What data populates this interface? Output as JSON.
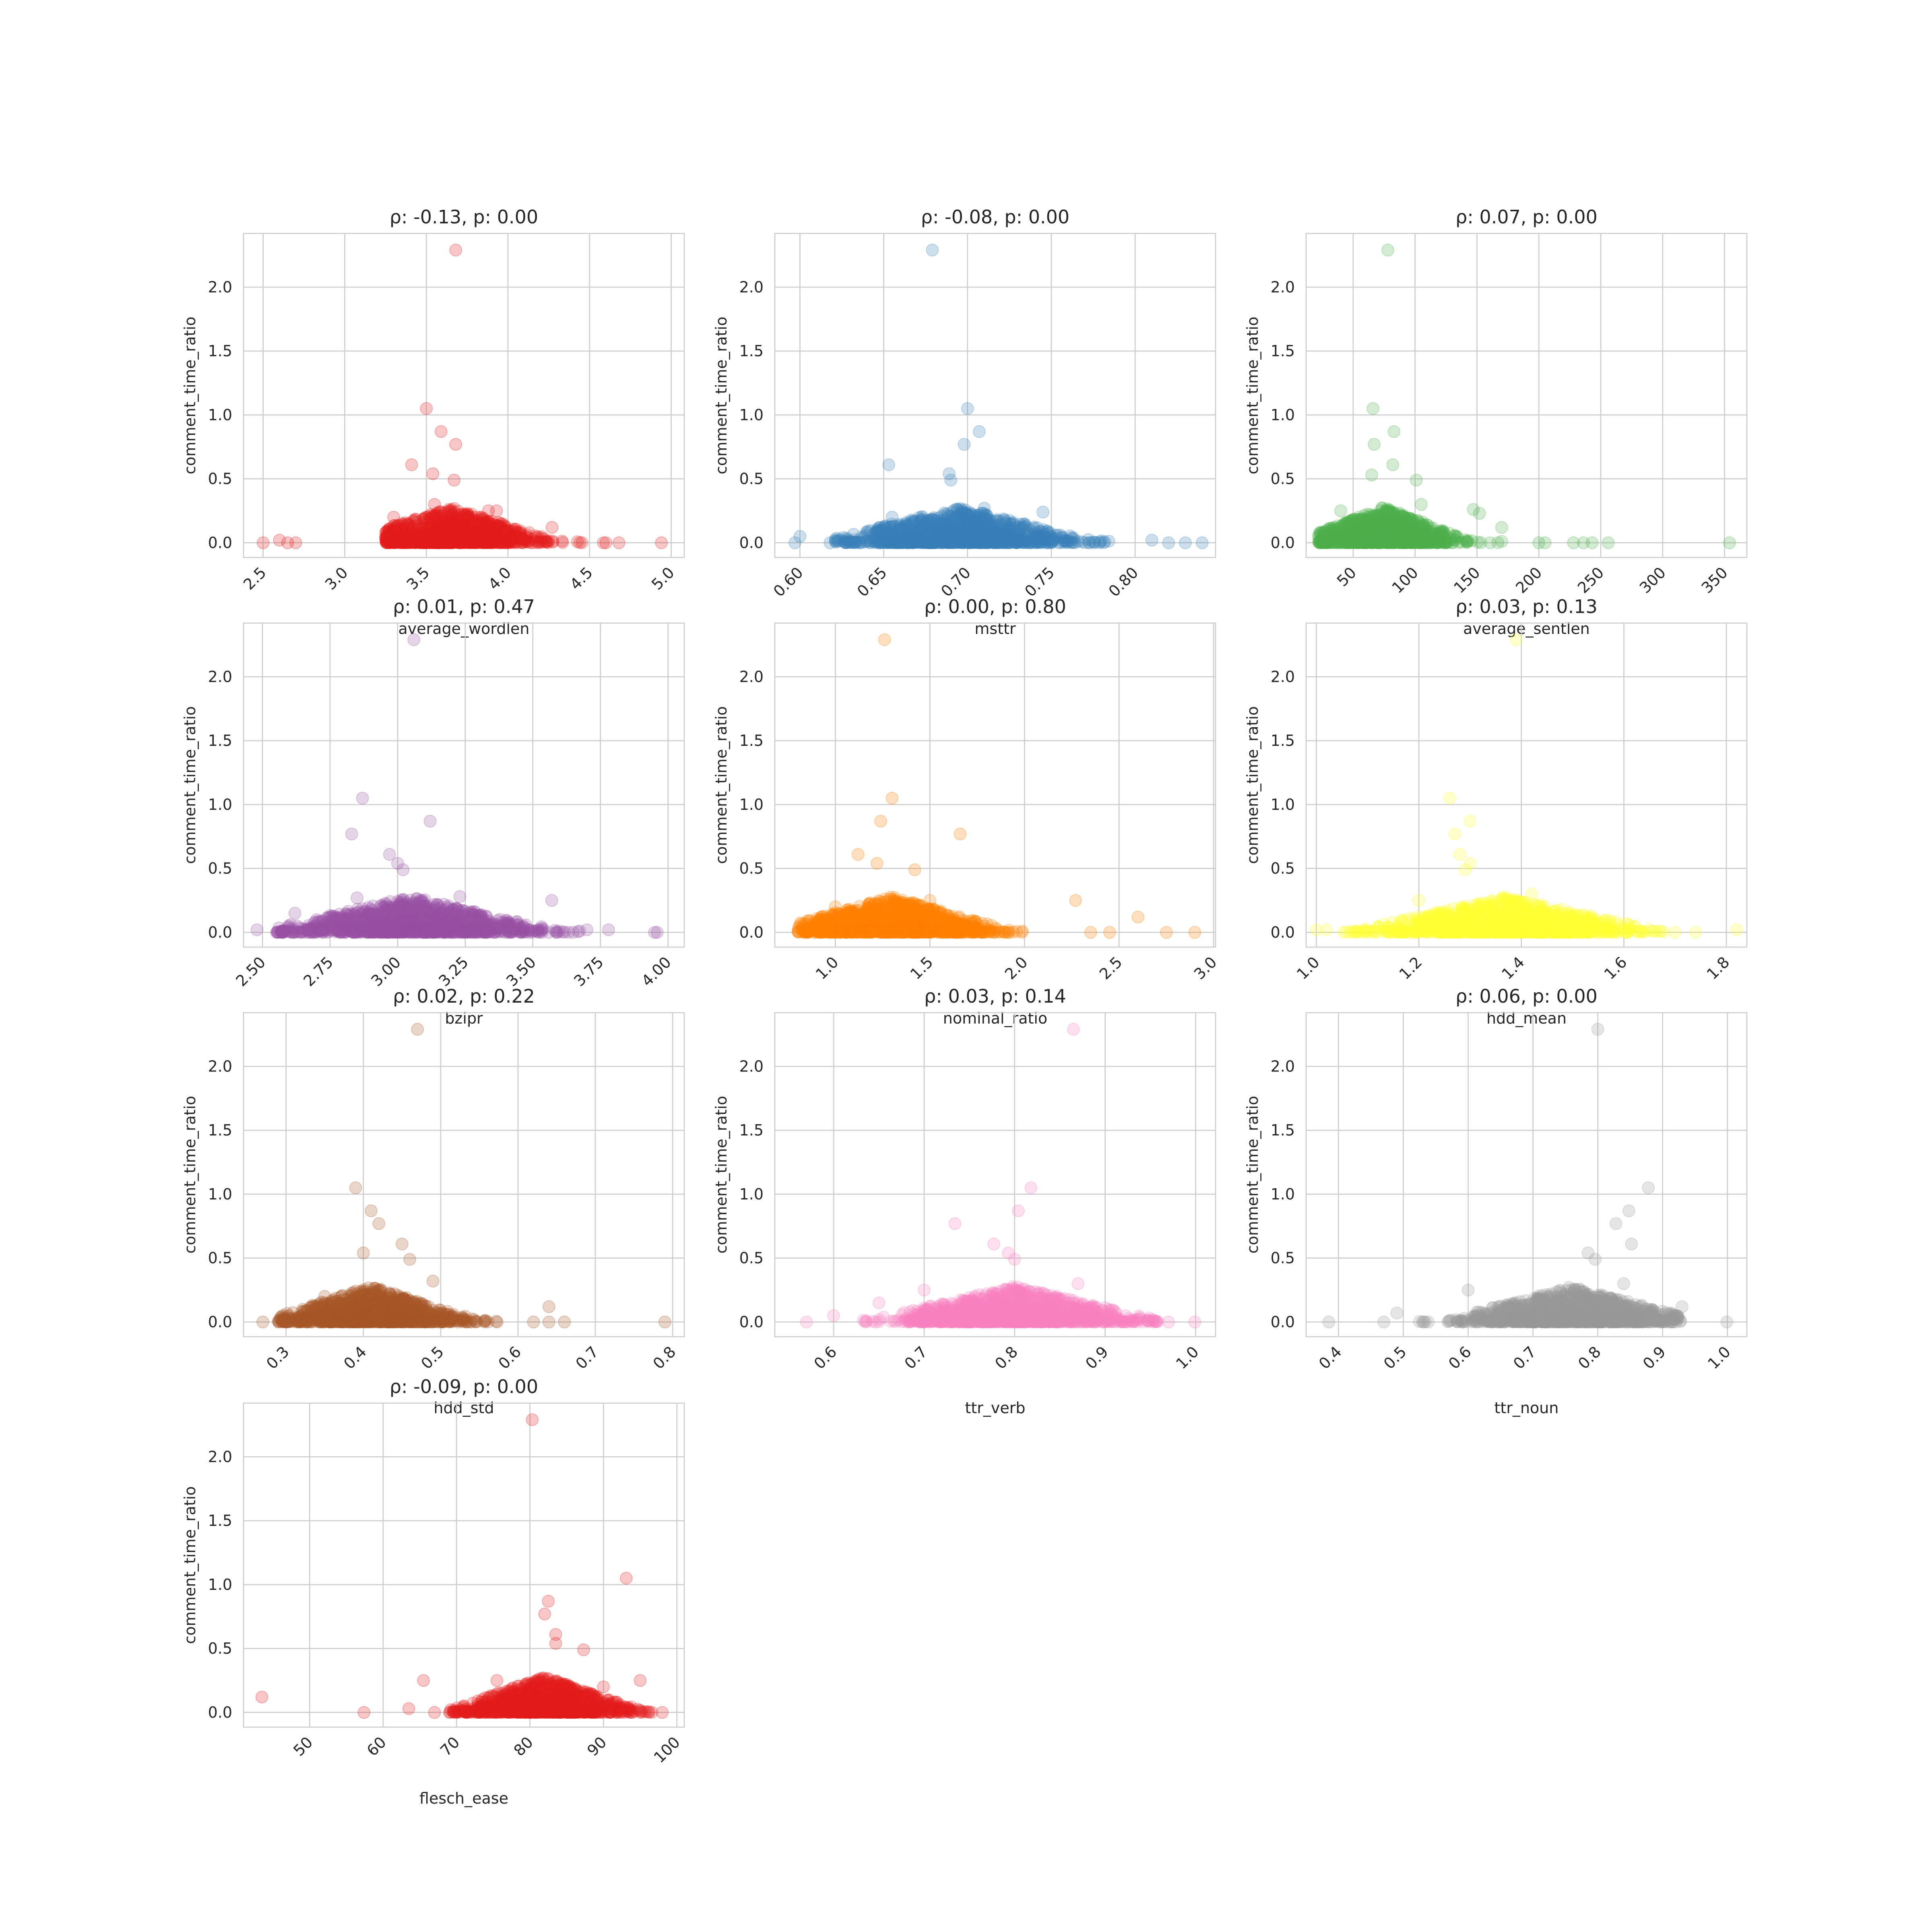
{
  "chart_data": [
    {
      "type": "scatter",
      "title": "ρ: -0.13, p: 0.00",
      "xlabel": "average_wordlen",
      "ylabel": "comment_time_ratio",
      "color": "#e41a1c",
      "xlim": [
        2.38,
        5.08
      ],
      "ylim": [
        -0.115,
        2.42
      ],
      "xticks": [
        2.5,
        3.0,
        3.5,
        4.0,
        4.5,
        5.0
      ],
      "xtick_labels": [
        "2.5",
        "3.0",
        "3.5",
        "4.0",
        "4.5",
        "5.0"
      ],
      "yticks": [
        0.0,
        0.5,
        1.0,
        1.5,
        2.0
      ],
      "ytick_labels": [
        "0.0",
        "0.5",
        "1.0",
        "1.5",
        "2.0"
      ],
      "points": [
        [
          3.68,
          2.29
        ],
        [
          3.5,
          1.05
        ],
        [
          3.59,
          0.87
        ],
        [
          3.68,
          0.77
        ],
        [
          3.41,
          0.61
        ],
        [
          3.54,
          0.54
        ],
        [
          3.67,
          0.49
        ],
        [
          3.88,
          0.25
        ],
        [
          3.93,
          0.25
        ],
        [
          4.27,
          0.12
        ],
        [
          2.5,
          0.0
        ],
        [
          2.6,
          0.02
        ],
        [
          2.65,
          0.0
        ],
        [
          2.7,
          0.0
        ],
        [
          4.94,
          0.0
        ],
        [
          4.68,
          0.0
        ],
        [
          4.6,
          0.0
        ],
        [
          3.3,
          0.2
        ],
        [
          3.55,
          0.3
        ],
        [
          3.75,
          0.18
        ]
      ],
      "cluster": {
        "x": [
          3.25,
          4.6
        ],
        "x_center": 3.65,
        "y_max": 0.28,
        "n": 1200
      }
    },
    {
      "type": "scatter",
      "title": "ρ: -0.08, p: 0.00",
      "xlabel": "msttr",
      "ylabel": "comment_time_ratio",
      "color": "#377eb8",
      "xlim": [
        0.585,
        0.848
      ],
      "ylim": [
        -0.115,
        2.42
      ],
      "xticks": [
        0.6,
        0.65,
        0.7,
        0.75,
        0.8
      ],
      "xtick_labels": [
        "0.60",
        "0.65",
        "0.70",
        "0.75",
        "0.80"
      ],
      "yticks": [
        0.0,
        0.5,
        1.0,
        1.5,
        2.0
      ],
      "ytick_labels": [
        "0.0",
        "0.5",
        "1.0",
        "1.5",
        "2.0"
      ],
      "points": [
        [
          0.679,
          2.29
        ],
        [
          0.7,
          1.05
        ],
        [
          0.707,
          0.87
        ],
        [
          0.698,
          0.77
        ],
        [
          0.653,
          0.61
        ],
        [
          0.689,
          0.54
        ],
        [
          0.69,
          0.49
        ],
        [
          0.745,
          0.24
        ],
        [
          0.6,
          0.05
        ],
        [
          0.597,
          0.0
        ],
        [
          0.618,
          0.0
        ],
        [
          0.82,
          0.0
        ],
        [
          0.83,
          0.0
        ],
        [
          0.84,
          0.0
        ],
        [
          0.81,
          0.02
        ],
        [
          0.655,
          0.2
        ],
        [
          0.71,
          0.27
        ]
      ],
      "cluster": {
        "x": [
          0.62,
          0.79
        ],
        "x_center": 0.695,
        "y_max": 0.28,
        "n": 1200
      }
    },
    {
      "type": "scatter",
      "title": "ρ: 0.07, p: 0.00",
      "xlabel": "average_sentlen",
      "ylabel": "comment_time_ratio",
      "color": "#4daf4a",
      "xlim": [
        12,
        368
      ],
      "ylim": [
        -0.115,
        2.42
      ],
      "xticks": [
        50,
        100,
        150,
        200,
        250,
        300,
        350
      ],
      "xtick_labels": [
        "50",
        "100",
        "150",
        "200",
        "250",
        "300",
        "350"
      ],
      "yticks": [
        0.0,
        0.5,
        1.0,
        1.5,
        2.0
      ],
      "ytick_labels": [
        "0.0",
        "0.5",
        "1.0",
        "1.5",
        "2.0"
      ],
      "points": [
        [
          78,
          2.29
        ],
        [
          66,
          1.05
        ],
        [
          67,
          0.77
        ],
        [
          83,
          0.87
        ],
        [
          82,
          0.61
        ],
        [
          65,
          0.53
        ],
        [
          101,
          0.49
        ],
        [
          105,
          0.3
        ],
        [
          147,
          0.26
        ],
        [
          152,
          0.23
        ],
        [
          170,
          0.12
        ],
        [
          200,
          0.0
        ],
        [
          205,
          0.0
        ],
        [
          228,
          0.0
        ],
        [
          236,
          0.0
        ],
        [
          243,
          0.0
        ],
        [
          256,
          0.0
        ],
        [
          354,
          0.0
        ],
        [
          25,
          0.0
        ],
        [
          40,
          0.25
        ]
      ],
      "cluster": {
        "x": [
          22,
          170
        ],
        "x_center": 75,
        "y_max": 0.28,
        "n": 1200
      }
    },
    {
      "type": "scatter",
      "title": "ρ: 0.01, p: 0.47",
      "xlabel": "bzipr",
      "ylabel": "comment_time_ratio",
      "color": "#984ea3",
      "xlim": [
        2.43,
        4.06
      ],
      "ylim": [
        -0.115,
        2.42
      ],
      "xticks": [
        2.5,
        2.75,
        3.0,
        3.25,
        3.5,
        3.75,
        4.0
      ],
      "xtick_labels": [
        "2.50",
        "2.75",
        "3.00",
        "3.25",
        "3.50",
        "3.75",
        "4.00"
      ],
      "yticks": [
        0.0,
        0.5,
        1.0,
        1.5,
        2.0
      ],
      "ytick_labels": [
        "0.0",
        "0.5",
        "1.0",
        "1.5",
        "2.0"
      ],
      "points": [
        [
          3.06,
          2.29
        ],
        [
          2.87,
          1.05
        ],
        [
          2.83,
          0.77
        ],
        [
          3.12,
          0.87
        ],
        [
          2.97,
          0.61
        ],
        [
          3.0,
          0.54
        ],
        [
          3.02,
          0.49
        ],
        [
          2.48,
          0.02
        ],
        [
          2.62,
          0.15
        ],
        [
          3.7,
          0.02
        ],
        [
          3.78,
          0.02
        ],
        [
          3.95,
          0.0
        ],
        [
          3.96,
          0.0
        ],
        [
          3.57,
          0.25
        ],
        [
          3.23,
          0.28
        ],
        [
          2.85,
          0.27
        ]
      ],
      "cluster": {
        "x": [
          2.55,
          3.7
        ],
        "x_center": 3.05,
        "y_max": 0.28,
        "n": 1200
      }
    },
    {
      "type": "scatter",
      "title": "ρ: 0.00, p: 0.80",
      "xlabel": "nominal_ratio",
      "ylabel": "comment_time_ratio",
      "color": "#ff7f00",
      "xlim": [
        0.68,
        3.01
      ],
      "ylim": [
        -0.115,
        2.42
      ],
      "xticks": [
        1.0,
        1.5,
        2.0,
        2.5,
        3.0
      ],
      "xtick_labels": [
        "1.0",
        "1.5",
        "2.0",
        "2.5",
        "3.0"
      ],
      "yticks": [
        0.0,
        0.5,
        1.0,
        1.5,
        2.0
      ],
      "ytick_labels": [
        "0.0",
        "0.5",
        "1.0",
        "1.5",
        "2.0"
      ],
      "points": [
        [
          1.26,
          2.29
        ],
        [
          1.3,
          1.05
        ],
        [
          1.24,
          0.87
        ],
        [
          1.66,
          0.77
        ],
        [
          1.12,
          0.61
        ],
        [
          1.22,
          0.54
        ],
        [
          1.42,
          0.49
        ],
        [
          2.27,
          0.25
        ],
        [
          2.6,
          0.12
        ],
        [
          2.75,
          0.0
        ],
        [
          2.9,
          0.0
        ],
        [
          2.45,
          0.0
        ],
        [
          2.35,
          0.0
        ],
        [
          1.5,
          0.25
        ],
        [
          1.0,
          0.2
        ]
      ],
      "cluster": {
        "x": [
          0.8,
          2.15
        ],
        "x_center": 1.3,
        "y_max": 0.28,
        "n": 1200
      }
    },
    {
      "type": "scatter",
      "title": "ρ: 0.03, p: 0.13",
      "xlabel": "hdd_mean",
      "ylabel": "comment_time_ratio",
      "color": "#ffff33",
      "xlim": [
        0.98,
        1.84
      ],
      "ylim": [
        -0.115,
        2.42
      ],
      "xticks": [
        1.0,
        1.2,
        1.4,
        1.6,
        1.8
      ],
      "xtick_labels": [
        "1.0",
        "1.2",
        "1.4",
        "1.6",
        "1.8"
      ],
      "yticks": [
        0.0,
        0.5,
        1.0,
        1.5,
        2.0
      ],
      "ytick_labels": [
        "0.0",
        "0.5",
        "1.0",
        "1.5",
        "2.0"
      ],
      "points": [
        [
          1.39,
          2.29
        ],
        [
          1.26,
          1.05
        ],
        [
          1.3,
          0.87
        ],
        [
          1.27,
          0.77
        ],
        [
          1.28,
          0.61
        ],
        [
          1.3,
          0.54
        ],
        [
          1.29,
          0.49
        ],
        [
          1.0,
          0.02
        ],
        [
          1.02,
          0.02
        ],
        [
          1.7,
          0.0
        ],
        [
          1.74,
          0.0
        ],
        [
          1.82,
          0.02
        ],
        [
          1.42,
          0.3
        ],
        [
          1.2,
          0.25
        ]
      ],
      "cluster": {
        "x": [
          1.05,
          1.68
        ],
        "x_center": 1.37,
        "y_max": 0.28,
        "n": 1200
      }
    },
    {
      "type": "scatter",
      "title": "ρ: 0.02, p: 0.22",
      "xlabel": "hdd_std",
      "ylabel": "comment_time_ratio",
      "color": "#a65628",
      "xlim": [
        0.245,
        0.815
      ],
      "ylim": [
        -0.115,
        2.42
      ],
      "xticks": [
        0.3,
        0.4,
        0.5,
        0.6,
        0.7,
        0.8
      ],
      "xtick_labels": [
        "0.3",
        "0.4",
        "0.5",
        "0.6",
        "0.7",
        "0.8"
      ],
      "yticks": [
        0.0,
        0.5,
        1.0,
        1.5,
        2.0
      ],
      "ytick_labels": [
        "0.0",
        "0.5",
        "1.0",
        "1.5",
        "2.0"
      ],
      "points": [
        [
          0.47,
          2.29
        ],
        [
          0.39,
          1.05
        ],
        [
          0.41,
          0.87
        ],
        [
          0.42,
          0.77
        ],
        [
          0.45,
          0.61
        ],
        [
          0.4,
          0.54
        ],
        [
          0.46,
          0.49
        ],
        [
          0.49,
          0.32
        ],
        [
          0.27,
          0.0
        ],
        [
          0.79,
          0.0
        ],
        [
          0.66,
          0.0
        ],
        [
          0.64,
          0.12
        ],
        [
          0.64,
          0.0
        ],
        [
          0.62,
          0.0
        ],
        [
          0.35,
          0.2
        ]
      ],
      "cluster": {
        "x": [
          0.29,
          0.58
        ],
        "x_center": 0.41,
        "y_max": 0.28,
        "n": 1200
      }
    },
    {
      "type": "scatter",
      "title": "ρ: 0.03, p: 0.14",
      "xlabel": "ttr_verb",
      "ylabel": "comment_time_ratio",
      "color": "#f781bf",
      "xlim": [
        0.535,
        1.022
      ],
      "ylim": [
        -0.115,
        2.42
      ],
      "xticks": [
        0.6,
        0.7,
        0.8,
        0.9,
        1.0
      ],
      "xtick_labels": [
        "0.6",
        "0.7",
        "0.8",
        "0.9",
        "1.0"
      ],
      "yticks": [
        0.0,
        0.5,
        1.0,
        1.5,
        2.0
      ],
      "ytick_labels": [
        "0.0",
        "0.5",
        "1.0",
        "1.5",
        "2.0"
      ],
      "points": [
        [
          0.865,
          2.29
        ],
        [
          0.818,
          1.05
        ],
        [
          0.804,
          0.87
        ],
        [
          0.734,
          0.77
        ],
        [
          0.777,
          0.61
        ],
        [
          0.793,
          0.54
        ],
        [
          0.8,
          0.49
        ],
        [
          0.57,
          0.0
        ],
        [
          0.6,
          0.05
        ],
        [
          0.999,
          0.0
        ],
        [
          0.97,
          0.0
        ],
        [
          0.87,
          0.3
        ],
        [
          0.7,
          0.25
        ],
        [
          0.65,
          0.15
        ]
      ],
      "cluster": {
        "x": [
          0.62,
          0.96
        ],
        "x_center": 0.8,
        "y_max": 0.28,
        "n": 1200
      }
    },
    {
      "type": "scatter",
      "title": "ρ: 0.06, p: 0.00",
      "xlabel": "ttr_noun",
      "ylabel": "comment_time_ratio",
      "color": "#999999",
      "xlim": [
        0.35,
        1.03
      ],
      "ylim": [
        -0.115,
        2.42
      ],
      "xticks": [
        0.4,
        0.5,
        0.6,
        0.7,
        0.8,
        0.9,
        1.0
      ],
      "xtick_labels": [
        "0.4",
        "0.5",
        "0.6",
        "0.7",
        "0.8",
        "0.9",
        "1.0"
      ],
      "yticks": [
        0.0,
        0.5,
        1.0,
        1.5,
        2.0
      ],
      "ytick_labels": [
        "0.0",
        "0.5",
        "1.0",
        "1.5",
        "2.0"
      ],
      "points": [
        [
          0.8,
          2.29
        ],
        [
          0.878,
          1.05
        ],
        [
          0.848,
          0.87
        ],
        [
          0.828,
          0.77
        ],
        [
          0.852,
          0.61
        ],
        [
          0.785,
          0.54
        ],
        [
          0.796,
          0.49
        ],
        [
          0.385,
          0.0
        ],
        [
          0.47,
          0.0
        ],
        [
          0.49,
          0.07
        ],
        [
          0.999,
          0.0
        ],
        [
          0.93,
          0.12
        ],
        [
          0.84,
          0.3
        ],
        [
          0.6,
          0.25
        ]
      ],
      "cluster": {
        "x": [
          0.52,
          0.93
        ],
        "x_center": 0.76,
        "y_max": 0.28,
        "n": 1200
      }
    },
    {
      "type": "scatter",
      "title": "ρ: -0.09, p: 0.00",
      "xlabel": "flesch_ease",
      "ylabel": "comment_time_ratio",
      "color": "#e41a1c",
      "xlim": [
        41,
        101
      ],
      "ylim": [
        -0.115,
        2.42
      ],
      "xticks": [
        50,
        60,
        70,
        80,
        90,
        100
      ],
      "xtick_labels": [
        "50",
        "60",
        "70",
        "80",
        "90",
        "100"
      ],
      "yticks": [
        0.0,
        0.5,
        1.0,
        1.5,
        2.0
      ],
      "ytick_labels": [
        "0.0",
        "0.5",
        "1.0",
        "1.5",
        "2.0"
      ],
      "points": [
        [
          80.3,
          2.29
        ],
        [
          93.1,
          1.05
        ],
        [
          82.5,
          0.87
        ],
        [
          82,
          0.77
        ],
        [
          83.5,
          0.61
        ],
        [
          83.5,
          0.54
        ],
        [
          87.3,
          0.49
        ],
        [
          43.5,
          0.12
        ],
        [
          57.4,
          0.0
        ],
        [
          63.5,
          0.03
        ],
        [
          65.5,
          0.25
        ],
        [
          67,
          0.0
        ],
        [
          75.5,
          0.25
        ],
        [
          95,
          0.25
        ],
        [
          90,
          0.2
        ],
        [
          98,
          0.0
        ]
      ],
      "cluster": {
        "x": [
          69,
          97
        ],
        "x_center": 82,
        "y_max": 0.28,
        "n": 1200
      }
    }
  ]
}
